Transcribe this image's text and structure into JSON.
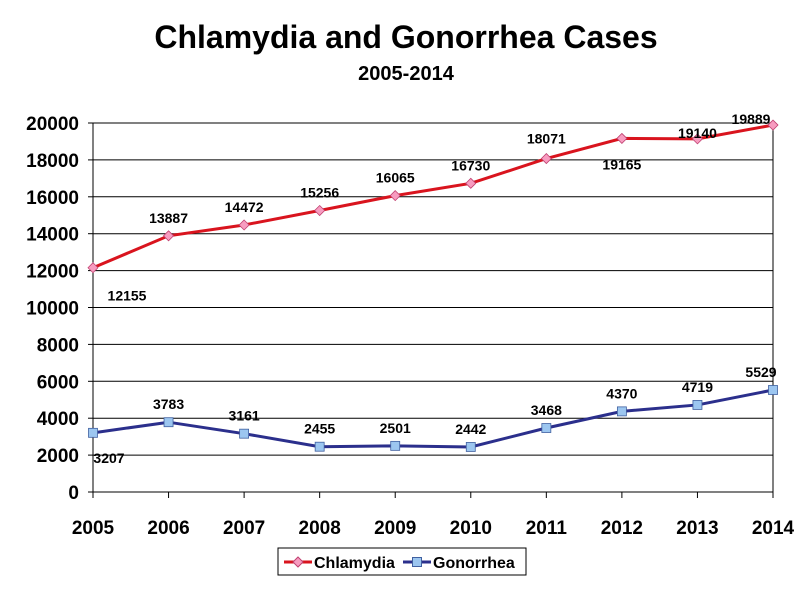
{
  "chart_data": {
    "type": "line",
    "title": "Chlamydia and Gonorrhea Cases",
    "subtitle": "2005-2014",
    "xlabel": "",
    "ylabel": "",
    "categories": [
      "2005",
      "2006",
      "2007",
      "2008",
      "2009",
      "2010",
      "2011",
      "2012",
      "2013",
      "2014"
    ],
    "ylim": [
      0,
      20000
    ],
    "yticks": [
      0,
      2000,
      4000,
      6000,
      8000,
      10000,
      12000,
      14000,
      16000,
      18000,
      20000
    ],
    "grid": true,
    "legend_placement": "bottom",
    "series": [
      {
        "name": "Chlamydia",
        "color": "#d9141e",
        "marker_color": "#f79cc0",
        "marker": "diamond",
        "values": [
          12155,
          13887,
          14472,
          15256,
          16065,
          16730,
          18071,
          19165,
          19140,
          19889
        ]
      },
      {
        "name": "Gonorrhea",
        "color": "#2b2f8c",
        "marker_color": "#9cc6f0",
        "marker": "square",
        "values": [
          3207,
          3783,
          3161,
          2455,
          2501,
          2442,
          3468,
          4370,
          4719,
          5529
        ]
      }
    ]
  }
}
